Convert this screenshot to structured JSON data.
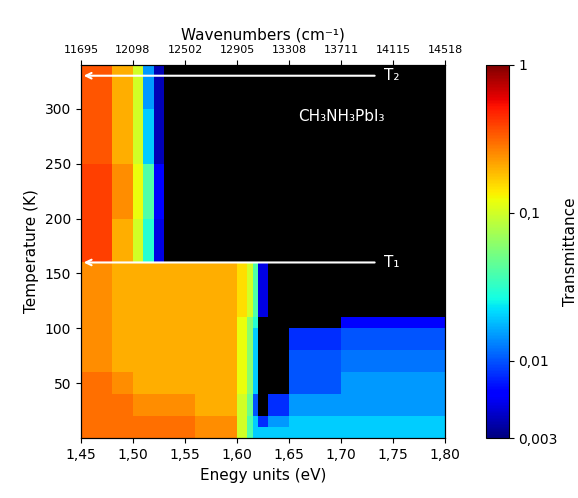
{
  "chart_data": {
    "type": "heatmap",
    "xlabel": "Enegy units (eV)",
    "ylabel": "Temperature (K)",
    "x2label": "Wavenumbers (cm⁻¹)",
    "xlim": [
      1.45,
      1.8
    ],
    "ylim": [
      0,
      340
    ],
    "xticks": [
      {
        "value": 1.45,
        "label": "1,45"
      },
      {
        "value": 1.5,
        "label": "1,50"
      },
      {
        "value": 1.55,
        "label": "1,55"
      },
      {
        "value": 1.6,
        "label": "1,60"
      },
      {
        "value": 1.65,
        "label": "1,65"
      },
      {
        "value": 1.7,
        "label": "1,70"
      },
      {
        "value": 1.75,
        "label": "1,75"
      },
      {
        "value": 1.8,
        "label": "1,80"
      }
    ],
    "x2ticks": [
      {
        "value": 1.45,
        "label": "11695"
      },
      {
        "value": 1.5,
        "label": "12098"
      },
      {
        "value": 1.55,
        "label": "12502"
      },
      {
        "value": 1.6,
        "label": "12905"
      },
      {
        "value": 1.65,
        "label": "13308"
      },
      {
        "value": 1.7,
        "label": "13711"
      },
      {
        "value": 1.75,
        "label": "14115"
      },
      {
        "value": 1.8,
        "label": "14518"
      }
    ],
    "yticks": [
      50,
      100,
      150,
      200,
      250,
      300
    ],
    "x_edges": [
      1.45,
      1.48,
      1.5,
      1.51,
      1.52,
      1.53,
      1.56,
      1.6,
      1.61,
      1.615,
      1.62,
      1.63,
      1.65,
      1.7,
      1.75,
      1.8
    ],
    "y_edges": [
      0,
      10,
      20,
      40,
      60,
      80,
      100,
      110,
      160,
      200,
      250,
      300,
      340
    ],
    "cells": [
      [
        0.3,
        0.3,
        0.3,
        0.3,
        0.3,
        0.3,
        0.25,
        0.1,
        0.04,
        0.02,
        0.02,
        0.02,
        0.02,
        0.02,
        0.02
      ],
      [
        0.3,
        0.3,
        0.3,
        0.3,
        0.3,
        0.3,
        0.25,
        0.1,
        0.04,
        0.02,
        0.008,
        0.015,
        0.02,
        0.02,
        0.02
      ],
      [
        0.3,
        0.3,
        0.25,
        0.25,
        0.25,
        0.25,
        0.2,
        0.1,
        0.05,
        0.01,
        0.001,
        0.008,
        0.015,
        0.015,
        0.015
      ],
      [
        0.3,
        0.25,
        0.2,
        0.2,
        0.2,
        0.2,
        0.2,
        0.12,
        0.06,
        0.02,
        0.001,
        0.001,
        0.01,
        0.015,
        0.015
      ],
      [
        0.25,
        0.2,
        0.2,
        0.2,
        0.2,
        0.2,
        0.2,
        0.12,
        0.06,
        0.02,
        0.001,
        0.001,
        0.01,
        0.012,
        0.012
      ],
      [
        0.25,
        0.2,
        0.2,
        0.2,
        0.2,
        0.2,
        0.2,
        0.12,
        0.06,
        0.02,
        0.001,
        0.001,
        0.008,
        0.01,
        0.01
      ],
      [
        0.25,
        0.2,
        0.2,
        0.2,
        0.2,
        0.2,
        0.2,
        0.12,
        0.06,
        0.03,
        0.001,
        0.001,
        0.001,
        0.006,
        0.006
      ],
      [
        0.25,
        0.2,
        0.2,
        0.2,
        0.2,
        0.2,
        0.2,
        0.15,
        0.1,
        0.04,
        0.005,
        0.001,
        0.001,
        0.001,
        0.001
      ],
      [
        0.4,
        0.2,
        0.1,
        0.03,
        0.005,
        0.001,
        0.001,
        0.001,
        0.001,
        0.001,
        0.001,
        0.001,
        0.001,
        0.001,
        0.001
      ],
      [
        0.4,
        0.25,
        0.12,
        0.04,
        0.006,
        0.001,
        0.001,
        0.001,
        0.001,
        0.001,
        0.001,
        0.001,
        0.001,
        0.001,
        0.001
      ],
      [
        0.35,
        0.2,
        0.1,
        0.02,
        0.004,
        0.001,
        0.001,
        0.001,
        0.001,
        0.001,
        0.001,
        0.001,
        0.001,
        0.001,
        0.001
      ],
      [
        0.35,
        0.2,
        0.1,
        0.015,
        0.004,
        0.001,
        0.001,
        0.001,
        0.001,
        0.001,
        0.001,
        0.001,
        0.001,
        0.001,
        0.001
      ]
    ],
    "colorbar": {
      "label": "Transmittance",
      "range": [
        0.003,
        1
      ],
      "log": true,
      "ticks": [
        {
          "value": 1,
          "label": "1"
        },
        {
          "value": 0.1,
          "label": "0,1"
        },
        {
          "value": 0.01,
          "label": "0,01"
        },
        {
          "value": 0.003,
          "label": "0,003"
        }
      ]
    },
    "lines": [
      {
        "label": "T₁",
        "y": 160,
        "x_start": 1.735,
        "x_end": 1.45
      },
      {
        "label": "T₂",
        "y": 330,
        "x_start": 1.735,
        "x_end": 1.45
      }
    ],
    "annotations": [
      {
        "text": "CH₃NH₃PbI₃",
        "x": 1.7,
        "y": 293
      }
    ]
  }
}
